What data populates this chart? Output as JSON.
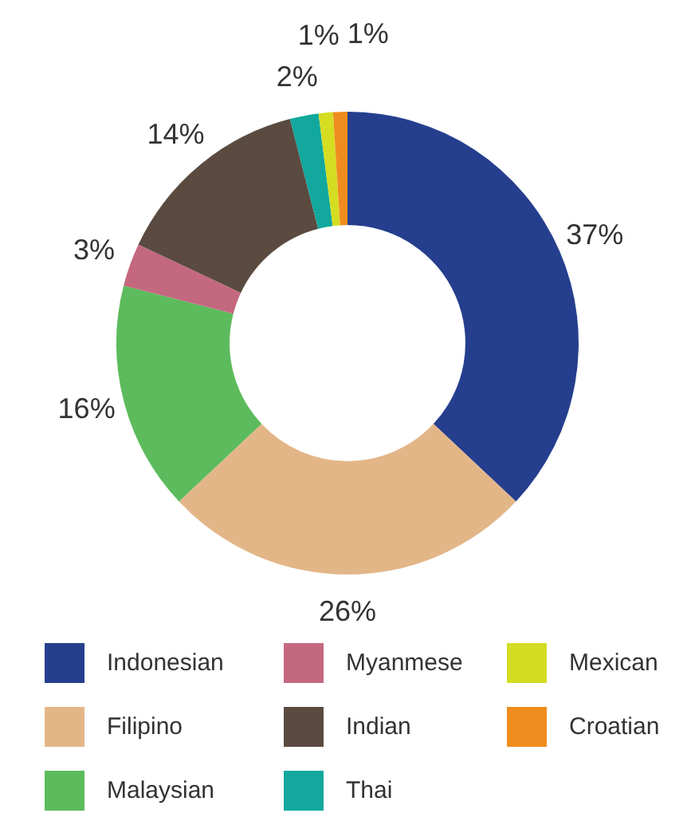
{
  "chart_data": {
    "type": "donut",
    "categories": [
      "Indonesian",
      "Filipino",
      "Malaysian",
      "Myanmese",
      "Indian",
      "Thai",
      "Mexican",
      "Croatian"
    ],
    "values": [
      37,
      26,
      16,
      3,
      14,
      2,
      1,
      1
    ],
    "value_labels": [
      "37%",
      "26%",
      "16%",
      "3%",
      "14%",
      "2%",
      "1%",
      "1%"
    ],
    "colors": [
      "#253f8e",
      "#e3b688",
      "#5cbb5c",
      "#c4687f",
      "#5a4a40",
      "#12a89d",
      "#d4dd22",
      "#f08c1e"
    ],
    "legend": "bottom"
  }
}
